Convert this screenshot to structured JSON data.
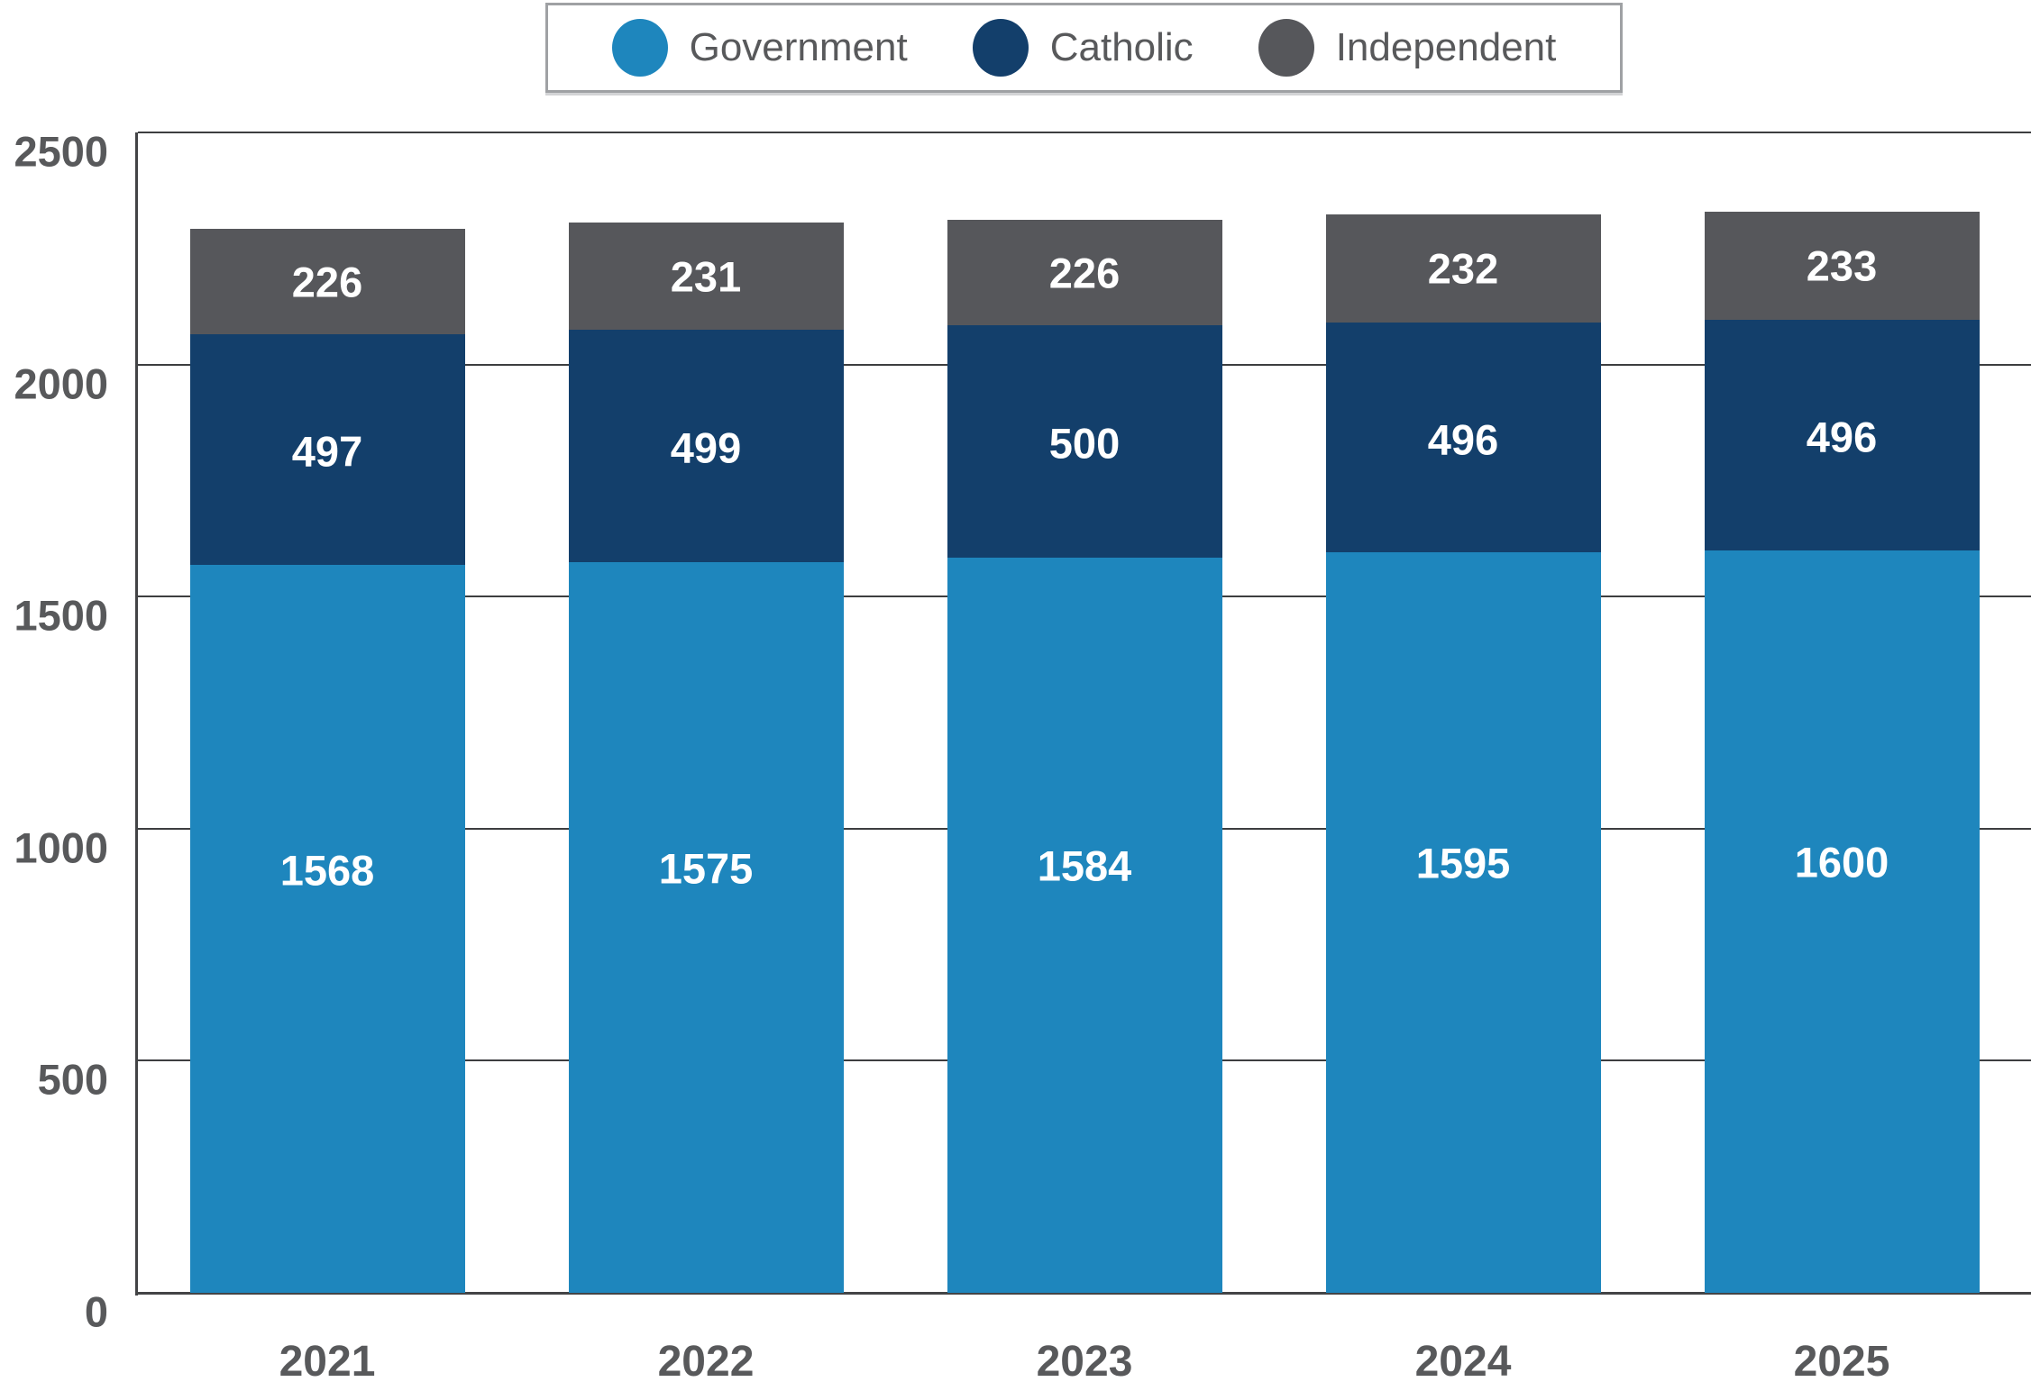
{
  "chart_data": {
    "type": "bar",
    "stacked": true,
    "title": "",
    "xlabel": "",
    "ylabel": "",
    "categories": [
      "2021",
      "2022",
      "2023",
      "2024",
      "2025"
    ],
    "series": [
      {
        "name": "Government",
        "color": "#1e86bd",
        "values": [
          1568,
          1575,
          1584,
          1595,
          1600
        ]
      },
      {
        "name": "Catholic",
        "color": "#133f6b",
        "values": [
          497,
          499,
          500,
          496,
          496
        ]
      },
      {
        "name": "Independent",
        "color": "#56575b",
        "values": [
          226,
          231,
          226,
          232,
          233
        ]
      }
    ],
    "totals": [
      2291,
      2305,
      2310,
      2323,
      2329
    ],
    "ylim": [
      0,
      2500
    ],
    "yticks": [
      0,
      500,
      1000,
      1500,
      2000,
      2500
    ],
    "grid": "horizontal",
    "legend_position": "top-center",
    "value_labels": "inside-white-bold"
  },
  "legend": {
    "items": [
      {
        "label": "Government"
      },
      {
        "label": "Catholic"
      },
      {
        "label": "Independent"
      }
    ]
  },
  "colors": {
    "government": "#1e86bd",
    "catholic": "#133f6b",
    "independent": "#56575b",
    "axis_text": "#58595b",
    "grid_line": "#3d3e40",
    "legend_border": "#9fa1a4",
    "value_text": "#ffffff",
    "background": "#ffffff"
  }
}
